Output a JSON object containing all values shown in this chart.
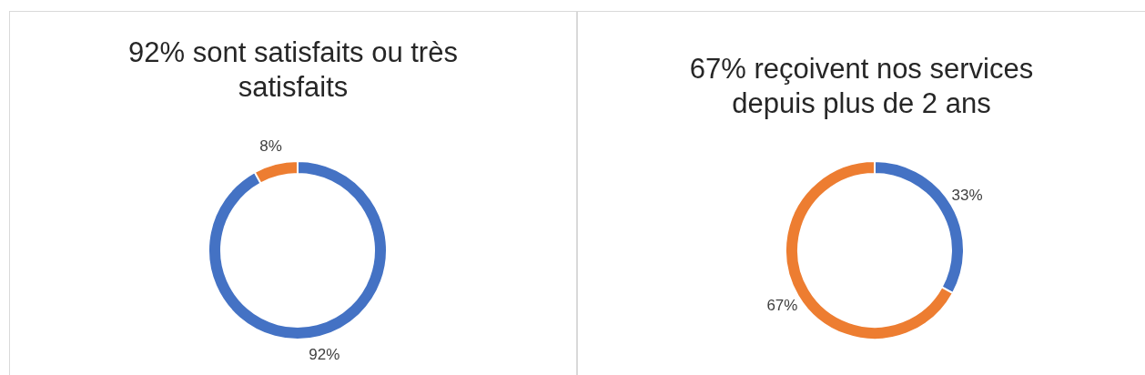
{
  "chart_data": [
    {
      "type": "donut",
      "title": "92% sont satisfaits ou très satisfaits",
      "categories": [
        null,
        null
      ],
      "values": [
        92,
        8
      ],
      "colors": [
        "#4472c4",
        "#ed7d31"
      ],
      "value_labels": [
        "92%",
        "8%"
      ],
      "legend": false
    },
    {
      "type": "donut",
      "title": "67% reçoivent nos services depuis plus de 2 ans",
      "categories": [
        null,
        null
      ],
      "values": [
        33,
        67
      ],
      "colors": [
        "#4472c4",
        "#ed7d31"
      ],
      "value_labels": [
        "33%",
        "67%"
      ],
      "legend": false
    }
  ]
}
